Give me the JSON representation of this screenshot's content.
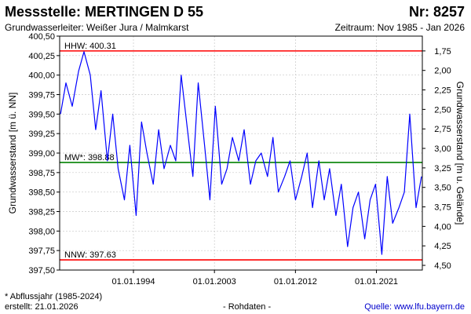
{
  "header": {
    "title": "Messstelle: MERTINGEN D 55",
    "number": "Nr: 8257",
    "aquifer": "Grundwasserleiter:   Weißer Jura / Malmkarst",
    "period": "Zeitraum: Nov 1985 - Jan 2026"
  },
  "footer": {
    "note": "* Abflussjahr (1985-2024)",
    "created": "erstellt:   21.01.2026",
    "raw": "- Rohdaten -",
    "source": "Quelle: www.lfu.bayern.de"
  },
  "colors": {
    "series": "#0000ff",
    "extreme_lines": "#ff0000",
    "mean_line": "#008000",
    "grid": "#c8c8c8"
  },
  "chart_data": {
    "type": "line",
    "ylabel": "Grundwasserstand [m ü. NN]",
    "y2label": "Grundwasserstand [m u. Gelände]",
    "ylim": [
      397.5,
      400.5
    ],
    "y_ticks": [
      "397,50",
      "397,75",
      "398,00",
      "398,25",
      "398,50",
      "398,75",
      "399,00",
      "399,25",
      "399,50",
      "399,75",
      "400,00",
      "400,25",
      "400,50"
    ],
    "y2_ticks": [
      "1,75",
      "2,00",
      "2,25",
      "2,50",
      "2,75",
      "3,00",
      "3,25",
      "3,50",
      "3,75",
      "4,00",
      "4,25",
      "4,50"
    ],
    "y2_tick_levels": [
      400.31,
      400.06,
      399.81,
      399.56,
      399.31,
      399.06,
      398.81,
      398.56,
      398.31,
      398.06,
      397.81,
      397.56
    ],
    "xlim": [
      1985.8,
      2026.1
    ],
    "x_ticks": [
      {
        "label": "01.01.1994",
        "year": 1994.0
      },
      {
        "label": "01.01.2003",
        "year": 2003.0
      },
      {
        "label": "01.01.2012",
        "year": 2012.0
      },
      {
        "label": "01.01.2021",
        "year": 2021.0
      }
    ],
    "grid": true,
    "reference_lines": [
      {
        "label": "HHW: 400.31",
        "value": 400.31,
        "kind": "max"
      },
      {
        "label": "MW*: 398.88",
        "value": 398.88,
        "kind": "mean"
      },
      {
        "label": "NNW: 397.63",
        "value": 397.63,
        "kind": "min"
      }
    ],
    "series": [
      {
        "x": [
          1985.9,
          1986.5,
          1987.2,
          1987.9,
          1988.5,
          1989.2,
          1989.8,
          1990.4,
          1991.1,
          1991.7,
          1992.3,
          1993.0,
          1993.6,
          1994.3,
          1994.9,
          1995.5,
          1996.2,
          1996.8,
          1997.4,
          1998.1,
          1998.7,
          1999.3,
          2000.0,
          2000.6,
          2001.2,
          2001.9,
          2002.5,
          2003.1,
          2003.8,
          2004.4,
          2005.0,
          2005.7,
          2006.3,
          2007.0,
          2007.6,
          2008.2,
          2008.9,
          2009.5,
          2010.1,
          2010.8,
          2011.4,
          2012.0,
          2012.7,
          2013.3,
          2013.9,
          2014.6,
          2015.2,
          2015.8,
          2016.5,
          2017.1,
          2017.8,
          2018.4,
          2019.0,
          2019.7,
          2020.3,
          2020.9,
          2021.6,
          2022.2,
          2022.8,
          2023.5,
          2024.1,
          2024.7,
          2025.4,
          2026.0
        ],
        "y": [
          399.5,
          399.9,
          399.6,
          400.05,
          400.3,
          400.0,
          399.3,
          399.8,
          398.9,
          399.5,
          398.8,
          398.4,
          399.1,
          398.2,
          399.4,
          399.0,
          398.6,
          399.3,
          398.8,
          399.1,
          398.9,
          400.0,
          399.3,
          398.7,
          399.9,
          399.1,
          398.4,
          399.6,
          398.6,
          398.8,
          399.2,
          398.9,
          399.3,
          398.6,
          398.9,
          399.0,
          398.7,
          399.2,
          398.5,
          398.7,
          398.9,
          398.4,
          398.7,
          399.0,
          398.3,
          398.9,
          398.4,
          398.8,
          398.2,
          398.6,
          397.8,
          398.3,
          398.5,
          397.9,
          398.4,
          398.6,
          397.7,
          398.7,
          398.1,
          398.3,
          398.5,
          399.5,
          398.3,
          398.7
        ]
      }
    ]
  }
}
